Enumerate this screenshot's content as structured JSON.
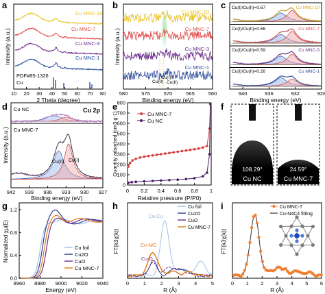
{
  "panels": [
    {
      "letter": "a"
    },
    {
      "letter": "b"
    },
    {
      "letter": "c"
    },
    {
      "letter": "d"
    },
    {
      "letter": "e"
    },
    {
      "letter": "f"
    },
    {
      "letter": "g"
    },
    {
      "letter": "h"
    },
    {
      "letter": "i"
    }
  ],
  "chart_data": [
    {
      "id": "a",
      "type": "line",
      "xlabel": "2 Theta (degree)",
      "ylabel": "Intensity (a.u.)",
      "xlim": [
        10,
        80
      ],
      "xticks": [
        10,
        20,
        30,
        40,
        50,
        60,
        70,
        80
      ],
      "series": [
        {
          "name": "Cu MNC-10",
          "color": "#e8c020",
          "offset": 3.0
        },
        {
          "name": "Cu MNC-7",
          "color": "#e04848",
          "offset": 2.0
        },
        {
          "name": "Cu MNC-3",
          "color": "#6a2a8a",
          "offset": 1.2
        },
        {
          "name": "Cu MNC-1",
          "color": "#2a4a9a",
          "offset": 0.5
        }
      ],
      "reference": {
        "name": "PDF#85-1326",
        "sub": "Cu",
        "peaks": [
          43.3,
          50.4,
          74.1
        ]
      }
    },
    {
      "id": "b",
      "type": "line",
      "xlabel": "Binding energy (eV)",
      "ylabel": "Intensity (a.u.)",
      "xlim": [
        580,
        560
      ],
      "xticks": [
        580,
        575,
        570,
        565,
        560
      ],
      "annotations": [
        "Cu(0)",
        "Cu(I)",
        "Cu(II)"
      ],
      "series": [
        {
          "name": "Cu MNC-10",
          "color": "#e8c020"
        },
        {
          "name": "Cu MNC-7",
          "color": "#e04848"
        },
        {
          "name": "Cu MNC-3",
          "color": "#6a2a8a"
        },
        {
          "name": "Cu MNC-1",
          "color": "#2a4a9a"
        }
      ]
    },
    {
      "id": "c",
      "type": "line",
      "xlabel": "Binding energy (eV)",
      "xlim": [
        942,
        928
      ],
      "xticks": [
        940,
        936,
        932,
        928
      ],
      "series": [
        {
          "name": "Cu MNC-10",
          "ratio": "Cu(I)/Cu(II)=0.67"
        },
        {
          "name": "Cu MNC-7",
          "ratio": "Cu(I)/Cu(II)=0.66"
        },
        {
          "name": "Cu MNC-3",
          "ratio": "Cu(I)/Cu(II)=0.59"
        },
        {
          "name": "Cu MNC-1",
          "ratio": "Cu(I)/Cu(II)=0.26"
        }
      ]
    },
    {
      "id": "d",
      "type": "line",
      "xlabel": "Binding energy (eV)",
      "ylabel": "Intensity (a.u.)",
      "xlim": [
        942,
        927
      ],
      "xticks": [
        942,
        939,
        936,
        933,
        930,
        927
      ],
      "top_label": "Cu NC",
      "corner_label": "Cu 2p",
      "bottom_label": "Cu MNC-7",
      "peaks": [
        "Cu(II)",
        "Cu(I)"
      ]
    },
    {
      "id": "e",
      "type": "scatter",
      "xlabel": "Relative pressure (P/P0)",
      "ylabel": "Quantity adsorbed (cm3 g-1)",
      "xlim": [
        0.0,
        1.0
      ],
      "ylim": [
        0,
        800
      ],
      "xticks": [
        0.0,
        0.2,
        0.4,
        0.6,
        0.8,
        1.0
      ],
      "yticks": [
        0,
        100,
        200,
        300,
        400,
        500,
        600,
        700,
        800
      ],
      "series": [
        {
          "name": "Cu MNC-7",
          "color": "#d83a3a",
          "x": [
            0.01,
            0.03,
            0.06,
            0.1,
            0.15,
            0.2,
            0.25,
            0.3,
            0.35,
            0.4,
            0.45,
            0.5,
            0.55,
            0.6,
            0.65,
            0.7,
            0.75,
            0.8,
            0.85,
            0.9,
            0.95,
            0.98,
            0.99
          ],
          "y": [
            180,
            215,
            240,
            255,
            268,
            276,
            282,
            288,
            294,
            300,
            306,
            312,
            318,
            324,
            330,
            336,
            342,
            348,
            355,
            365,
            380,
            550,
            790
          ]
        },
        {
          "name": "Cu NC",
          "color": "#4a1a6a",
          "x": [
            0.01,
            0.05,
            0.1,
            0.2,
            0.3,
            0.4,
            0.5,
            0.6,
            0.7,
            0.8,
            0.9,
            0.95,
            0.98,
            0.99
          ],
          "y": [
            22,
            28,
            32,
            36,
            40,
            44,
            48,
            52,
            58,
            66,
            85,
            120,
            300,
            790
          ]
        }
      ]
    },
    {
      "id": "f",
      "type": "table",
      "images": [
        {
          "label": "Cu NC",
          "angle": "108.29°"
        },
        {
          "label": "Cu MNC-7",
          "angle": "24.59°"
        }
      ]
    },
    {
      "id": "g",
      "type": "line",
      "xlabel": "Energy (eV)",
      "ylabel": "Normalized χμ(E)",
      "xlim": [
        8960,
        9040
      ],
      "ylim": [
        0,
        1.2
      ],
      "xticks": [
        8960,
        8980,
        9000,
        9020,
        9040
      ],
      "yticks": [
        0.0,
        0.4,
        0.8,
        1.2
      ],
      "series": [
        {
          "name": "Cu foil",
          "color": "#9ec0e8"
        },
        {
          "name": "Cu2O",
          "color": "#2a3a8a"
        },
        {
          "name": "CuO",
          "color": "#6a2a8a"
        },
        {
          "name": "Cu MNC-7",
          "color": "#e07818"
        }
      ]
    },
    {
      "id": "h",
      "type": "line",
      "xlabel": "R (Å)",
      "ylabel": "FT(k3χ(k))",
      "xlim": [
        0,
        5
      ],
      "xticks": [
        0,
        1,
        2,
        3,
        4,
        5
      ],
      "annotations": [
        "Cu-Cu",
        "Cu-N/C",
        "Cu-O"
      ],
      "series": [
        {
          "name": "Cu foil",
          "color": "#9ec0e8"
        },
        {
          "name": "Cu2O",
          "color": "#2a3a8a"
        },
        {
          "name": "CuO",
          "color": "#6a2a8a"
        },
        {
          "name": "Cu MNC-7",
          "color": "#e07818"
        }
      ]
    },
    {
      "id": "i",
      "type": "line",
      "xlabel": "R (Å)",
      "ylabel": "FT(k3χ(k))",
      "xlim": [
        0,
        6
      ],
      "xticks": [
        0,
        1,
        2,
        3,
        4,
        5,
        6
      ],
      "series": [
        {
          "name": "Cu MNC-7",
          "color": "#f08030"
        },
        {
          "name": "Cu-N4C4 fitting",
          "color": "#333333"
        }
      ]
    }
  ]
}
